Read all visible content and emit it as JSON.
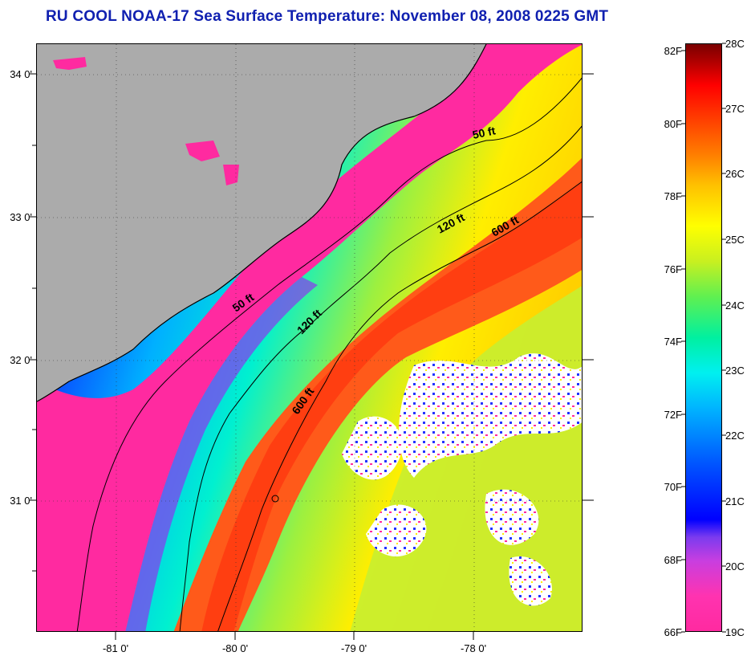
{
  "title": "RU COOL  NOAA-17  Sea Surface Temperature:  November 08, 2008 0225 GMT",
  "map": {
    "lat_labels": [
      "34 0'",
      "33 0'",
      "32 0'",
      "31 0'"
    ],
    "lon_labels": [
      "-81 0'",
      "-80 0'",
      "-79 0'",
      "-78 0'"
    ],
    "isobaths": {
      "label_50a": "50 ft",
      "label_50b": "50 ft",
      "label_120a": "120 ft",
      "label_120b": "120 ft",
      "label_600a": "600 ft",
      "label_600b": "600 ft"
    },
    "colors": {
      "land": "#ababab",
      "nearshore": "#ff2aa0",
      "cloud": "#ffffff"
    }
  },
  "colorbar": {
    "fahrenheit": [
      "82F",
      "80F",
      "78F",
      "76F",
      "74F",
      "72F",
      "70F",
      "68F",
      "66F"
    ],
    "celsius": [
      "28C",
      "27C",
      "26C",
      "25C",
      "24C",
      "23C",
      "22C",
      "21C",
      "20C",
      "19C"
    ]
  }
}
